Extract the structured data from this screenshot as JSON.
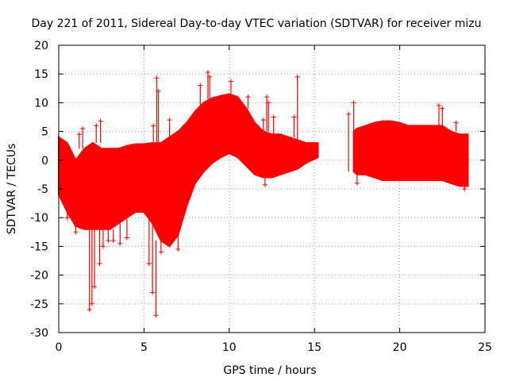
{
  "colors": {
    "series": "#ff0000",
    "axis": "#000000",
    "grid": "#a0a0a0",
    "background": "#ffffff"
  },
  "chart_data": {
    "type": "scatter",
    "title": "Day 221 of 2011, Sidereal Day-to-day VTEC variation (SDTVAR) for receiver mizu",
    "xlabel": "GPS time / hours",
    "ylabel": "SDTVAR / TECUs",
    "xlim": [
      0,
      25
    ],
    "ylim": [
      -30,
      20
    ],
    "xticks": [
      0,
      5,
      10,
      15,
      20,
      25
    ],
    "yticks": [
      -30,
      -25,
      -20,
      -15,
      -10,
      -5,
      0,
      5,
      10,
      15,
      20
    ],
    "grid": true,
    "marker": "+",
    "series": [
      {
        "name": "SDTVAR",
        "color": "#ff0000",
        "envelope": [
          {
            "x": 0.0,
            "lo": -6,
            "hi": 4
          },
          {
            "x": 0.5,
            "lo": -9,
            "hi": 3
          },
          {
            "x": 1.0,
            "lo": -11.5,
            "hi": 0
          },
          {
            "x": 1.5,
            "lo": -12,
            "hi": 2
          },
          {
            "x": 2.0,
            "lo": -12,
            "hi": 3
          },
          {
            "x": 2.5,
            "lo": -12,
            "hi": 2
          },
          {
            "x": 3.0,
            "lo": -12,
            "hi": 2
          },
          {
            "x": 3.5,
            "lo": -11,
            "hi": 2
          },
          {
            "x": 4.0,
            "lo": -10,
            "hi": 2.5
          },
          {
            "x": 4.5,
            "lo": -9,
            "hi": 2.8
          },
          {
            "x": 5.0,
            "lo": -9,
            "hi": 2.8
          },
          {
            "x": 5.5,
            "lo": -11,
            "hi": 3
          },
          {
            "x": 6.0,
            "lo": -14,
            "hi": 3
          },
          {
            "x": 6.5,
            "lo": -15,
            "hi": 4
          },
          {
            "x": 7.0,
            "lo": -13,
            "hi": 5
          },
          {
            "x": 7.5,
            "lo": -8,
            "hi": 6.5
          },
          {
            "x": 8.0,
            "lo": -4,
            "hi": 8.5
          },
          {
            "x": 8.5,
            "lo": -2,
            "hi": 10
          },
          {
            "x": 9.0,
            "lo": -0.5,
            "hi": 10.8
          },
          {
            "x": 9.5,
            "lo": 0.5,
            "hi": 11.2
          },
          {
            "x": 10.0,
            "lo": 1.2,
            "hi": 11.5
          },
          {
            "x": 10.5,
            "lo": 0.5,
            "hi": 11
          },
          {
            "x": 11.0,
            "lo": -1,
            "hi": 9
          },
          {
            "x": 11.5,
            "lo": -2.5,
            "hi": 6.5
          },
          {
            "x": 12.0,
            "lo": -3,
            "hi": 5
          },
          {
            "x": 12.5,
            "lo": -3,
            "hi": 4.5
          },
          {
            "x": 13.0,
            "lo": -2.5,
            "hi": 4.5
          },
          {
            "x": 13.5,
            "lo": -2,
            "hi": 4
          },
          {
            "x": 14.0,
            "lo": -1.5,
            "hi": 3.5
          },
          {
            "x": 14.5,
            "lo": -0.5,
            "hi": 3
          },
          {
            "x": 15.2,
            "lo": 0.5,
            "hi": 3
          },
          {
            "x": 17.3,
            "lo": -2,
            "hi": 5
          },
          {
            "x": 17.5,
            "lo": -2.5,
            "hi": 5.5
          },
          {
            "x": 18.0,
            "lo": -2.5,
            "hi": 6
          },
          {
            "x": 18.5,
            "lo": -3,
            "hi": 6.5
          },
          {
            "x": 19.0,
            "lo": -3.5,
            "hi": 6.8
          },
          {
            "x": 19.5,
            "lo": -3.5,
            "hi": 6.8
          },
          {
            "x": 20.0,
            "lo": -3.5,
            "hi": 6.5
          },
          {
            "x": 20.5,
            "lo": -3.5,
            "hi": 6
          },
          {
            "x": 21.0,
            "lo": -3.5,
            "hi": 6
          },
          {
            "x": 21.5,
            "lo": -3.5,
            "hi": 6
          },
          {
            "x": 22.0,
            "lo": -3.5,
            "hi": 6
          },
          {
            "x": 22.5,
            "lo": -3.5,
            "hi": 6
          },
          {
            "x": 23.0,
            "lo": -4,
            "hi": 5
          },
          {
            "x": 23.5,
            "lo": -4.5,
            "hi": 4.5
          },
          {
            "x": 24.0,
            "lo": -4.5,
            "hi": 4.5
          }
        ],
        "spikes": [
          {
            "x": 0.5,
            "y1": -9,
            "y2": -10
          },
          {
            "x": 1.0,
            "y1": -11.5,
            "y2": -12.5
          },
          {
            "x": 1.2,
            "y1": 2,
            "y2": 4.5
          },
          {
            "x": 1.4,
            "y1": 2,
            "y2": 5.5
          },
          {
            "x": 1.8,
            "y1": -12,
            "y2": -26
          },
          {
            "x": 1.95,
            "y1": -12,
            "y2": -25
          },
          {
            "x": 2.1,
            "y1": -12,
            "y2": -22
          },
          {
            "x": 2.2,
            "y1": 3,
            "y2": 6
          },
          {
            "x": 2.4,
            "y1": -12,
            "y2": -18
          },
          {
            "x": 2.45,
            "y1": 3,
            "y2": 6.8
          },
          {
            "x": 2.6,
            "y1": -12,
            "y2": -15
          },
          {
            "x": 2.9,
            "y1": -12,
            "y2": -14
          },
          {
            "x": 3.2,
            "y1": -12,
            "y2": -14
          },
          {
            "x": 3.6,
            "y1": -11,
            "y2": -14.5
          },
          {
            "x": 4.0,
            "y1": -10,
            "y2": -13.5
          },
          {
            "x": 5.3,
            "y1": -10,
            "y2": -18
          },
          {
            "x": 5.5,
            "y1": -11,
            "y2": -23
          },
          {
            "x": 5.55,
            "y1": 3,
            "y2": 6
          },
          {
            "x": 5.7,
            "y1": -14,
            "y2": -27
          },
          {
            "x": 5.75,
            "y1": 3,
            "y2": 14.3
          },
          {
            "x": 5.85,
            "y1": 3,
            "y2": 12
          },
          {
            "x": 6.0,
            "y1": -14,
            "y2": -16
          },
          {
            "x": 6.5,
            "y1": 4,
            "y2": 7
          },
          {
            "x": 7.0,
            "y1": -13,
            "y2": -15.5
          },
          {
            "x": 8.3,
            "y1": 9.5,
            "y2": 13
          },
          {
            "x": 8.75,
            "y1": 10.5,
            "y2": 15.3
          },
          {
            "x": 8.85,
            "y1": 10.5,
            "y2": 14.5
          },
          {
            "x": 10.1,
            "y1": 11.5,
            "y2": 13.7
          },
          {
            "x": 11.1,
            "y1": 9,
            "y2": 11
          },
          {
            "x": 12.0,
            "y1": 5,
            "y2": 7
          },
          {
            "x": 12.1,
            "y1": -3,
            "y2": -4.3
          },
          {
            "x": 12.2,
            "y1": 5,
            "y2": 11
          },
          {
            "x": 12.3,
            "y1": 5,
            "y2": 10
          },
          {
            "x": 12.6,
            "y1": 4.5,
            "y2": 7.5
          },
          {
            "x": 13.8,
            "y1": 4,
            "y2": 7.5
          },
          {
            "x": 14.0,
            "y1": 3.5,
            "y2": 14.5
          },
          {
            "x": 17.0,
            "y1": -2,
            "y2": 8
          },
          {
            "x": 17.3,
            "y1": 5,
            "y2": 10
          },
          {
            "x": 17.5,
            "y1": -2.5,
            "y2": -4
          },
          {
            "x": 22.3,
            "y1": 6,
            "y2": 9.5
          },
          {
            "x": 22.5,
            "y1": 6,
            "y2": 9
          },
          {
            "x": 23.3,
            "y1": 5,
            "y2": 6.5
          },
          {
            "x": 23.8,
            "y1": -4.5,
            "y2": -5
          }
        ]
      }
    ]
  }
}
